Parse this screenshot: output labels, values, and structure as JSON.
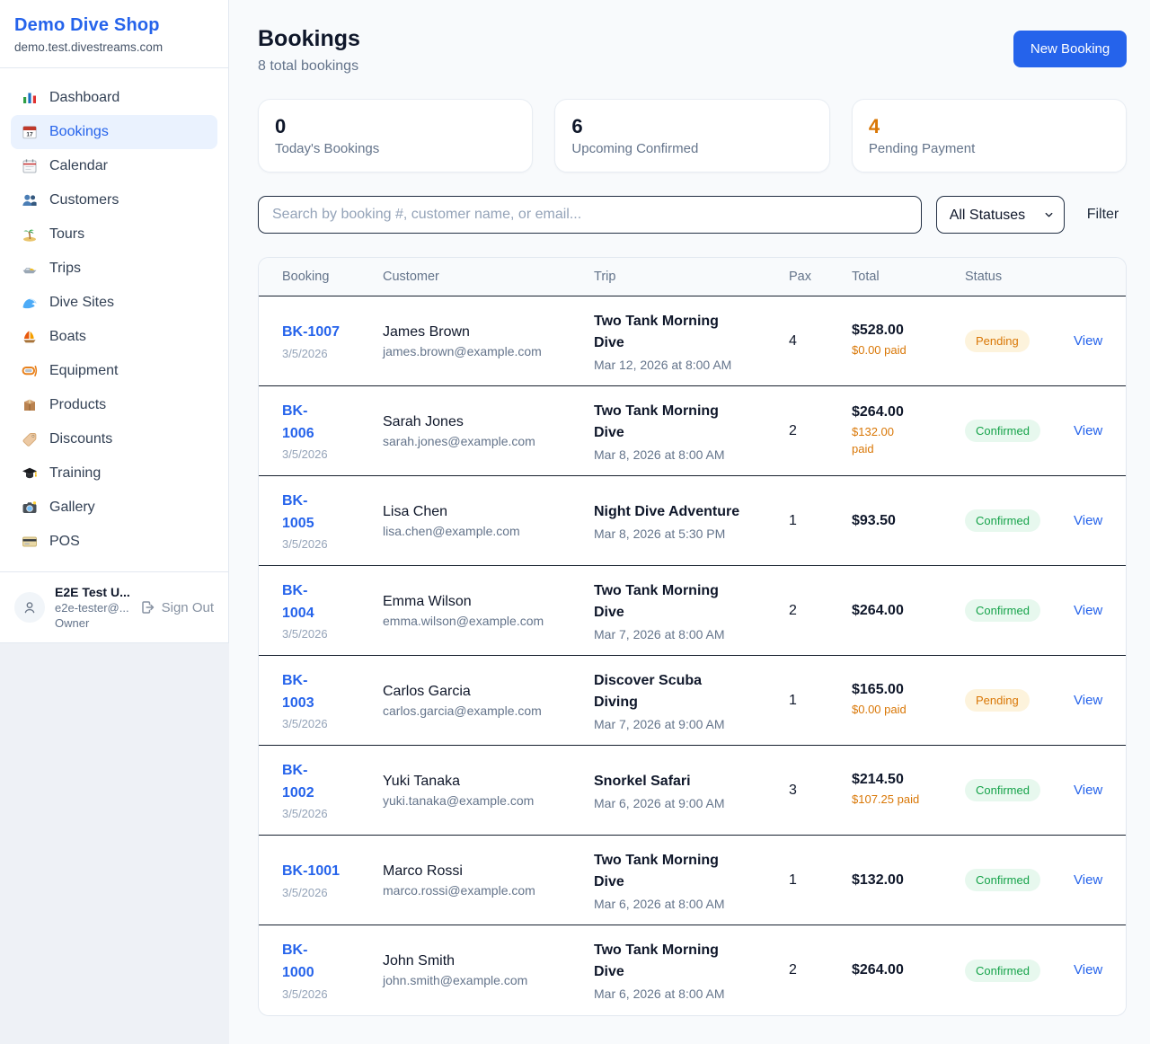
{
  "colors": {
    "accent": "#2563eb",
    "pending": "#d97706",
    "confirmed": "#16a34a",
    "dark_text": "#0f172a"
  },
  "sidebar": {
    "title": "Demo Dive Shop",
    "subtitle": "demo.test.divestreams.com",
    "nav": [
      {
        "label": "Dashboard",
        "icon": "dashboard-icon",
        "active": false
      },
      {
        "label": "Bookings",
        "icon": "bookings-icon",
        "active": true
      },
      {
        "label": "Calendar",
        "icon": "calendar-icon",
        "active": false
      },
      {
        "label": "Customers",
        "icon": "customers-icon",
        "active": false
      },
      {
        "label": "Tours",
        "icon": "tours-icon",
        "active": false
      },
      {
        "label": "Trips",
        "icon": "trips-icon",
        "active": false
      },
      {
        "label": "Dive Sites",
        "icon": "dive-sites-icon",
        "active": false
      },
      {
        "label": "Boats",
        "icon": "boats-icon",
        "active": false
      },
      {
        "label": "Equipment",
        "icon": "equipment-icon",
        "active": false
      },
      {
        "label": "Products",
        "icon": "products-icon",
        "active": false
      },
      {
        "label": "Discounts",
        "icon": "discounts-icon",
        "active": false
      },
      {
        "label": "Training",
        "icon": "training-icon",
        "active": false
      },
      {
        "label": "Gallery",
        "icon": "gallery-icon",
        "active": false
      },
      {
        "label": "POS",
        "icon": "pos-icon",
        "active": false
      }
    ],
    "user": {
      "name": "E2E Test U...",
      "email": "e2e-tester@...",
      "role": "Owner",
      "sign_out_label": "Sign Out"
    }
  },
  "header": {
    "title": "Bookings",
    "subtitle": "8 total bookings",
    "new_booking_label": "New Booking"
  },
  "stats": [
    {
      "value": "0",
      "label": "Today's Bookings",
      "color": "#0f172a"
    },
    {
      "value": "6",
      "label": "Upcoming Confirmed",
      "color": "#0f172a"
    },
    {
      "value": "4",
      "label": "Pending Payment",
      "color": "#d97706"
    }
  ],
  "filters": {
    "search_placeholder": "Search by booking #, customer name, or email...",
    "status_selected": "All Statuses",
    "filter_label": "Filter"
  },
  "table": {
    "columns": [
      "Booking",
      "Customer",
      "Trip",
      "Pax",
      "Total",
      "Status"
    ],
    "rows": [
      {
        "number": "BK-1007",
        "date": "3/5/2026",
        "customer": "James Brown",
        "email": "james.brown@example.com",
        "trip": "Two Tank Morning\nDive",
        "trip_date": "Mar 12, 2026 at 8:00 AM",
        "pax": "4",
        "total": "$528.00",
        "paid": "$0.00 paid",
        "status": "Pending",
        "action": "View"
      },
      {
        "number": "BK-\n1006",
        "date": "3/5/2026",
        "customer": "Sarah Jones",
        "email": "sarah.jones@example.com",
        "trip": "Two Tank Morning\nDive",
        "trip_date": "Mar 8, 2026 at 8:00 AM",
        "pax": "2",
        "total": "$264.00",
        "paid": "$132.00\npaid",
        "status": "Confirmed",
        "action": "View"
      },
      {
        "number": "BK-\n1005",
        "date": "3/5/2026",
        "customer": "Lisa Chen",
        "email": "lisa.chen@example.com",
        "trip": "Night Dive Adventure",
        "trip_date": "Mar 8, 2026 at 5:30 PM",
        "pax": "1",
        "total": "$93.50",
        "paid": "",
        "status": "Confirmed",
        "action": "View"
      },
      {
        "number": "BK-\n1004",
        "date": "3/5/2026",
        "customer": "Emma Wilson",
        "email": "emma.wilson@example.com",
        "trip": "Two Tank Morning\nDive",
        "trip_date": "Mar 7, 2026 at 8:00 AM",
        "pax": "2",
        "total": "$264.00",
        "paid": "",
        "status": "Confirmed",
        "action": "View"
      },
      {
        "number": "BK-\n1003",
        "date": "3/5/2026",
        "customer": "Carlos Garcia",
        "email": "carlos.garcia@example.com",
        "trip": "Discover Scuba\nDiving",
        "trip_date": "Mar 7, 2026 at 9:00 AM",
        "pax": "1",
        "total": "$165.00",
        "paid": "$0.00 paid",
        "status": "Pending",
        "action": "View"
      },
      {
        "number": "BK-\n1002",
        "date": "3/5/2026",
        "customer": "Yuki Tanaka",
        "email": "yuki.tanaka@example.com",
        "trip": "Snorkel Safari",
        "trip_date": "Mar 6, 2026 at 9:00 AM",
        "pax": "3",
        "total": "$214.50",
        "paid": "$107.25 paid",
        "status": "Confirmed",
        "action": "View"
      },
      {
        "number": "BK-1001",
        "date": "3/5/2026",
        "customer": "Marco Rossi",
        "email": "marco.rossi@example.com",
        "trip": "Two Tank Morning\nDive",
        "trip_date": "Mar 6, 2026 at 8:00 AM",
        "pax": "1",
        "total": "$132.00",
        "paid": "",
        "status": "Confirmed",
        "action": "View"
      },
      {
        "number": "BK-\n1000",
        "date": "3/5/2026",
        "customer": "John Smith",
        "email": "john.smith@example.com",
        "trip": "Two Tank Morning\nDive",
        "trip_date": "Mar 6, 2026 at 8:00 AM",
        "pax": "2",
        "total": "$264.00",
        "paid": "",
        "status": "Confirmed",
        "action": "View"
      }
    ]
  }
}
